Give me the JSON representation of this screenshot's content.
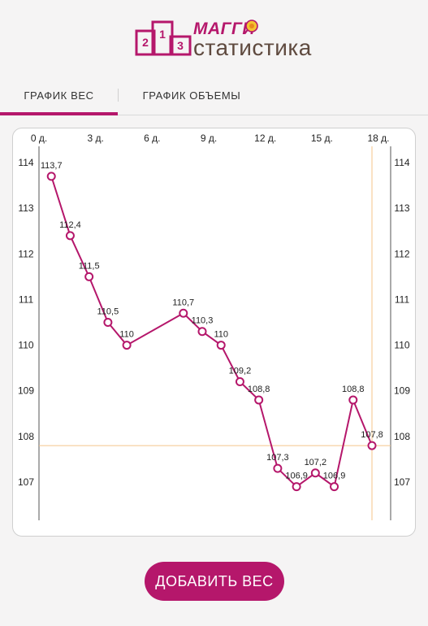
{
  "app": {
    "brand_top": "МАГГИ",
    "brand_bottom": "статистика"
  },
  "tabs": [
    {
      "label": "ГРАФИК ВЕС",
      "active": true
    },
    {
      "label": "ГРАФИК ОБЪЕМЫ",
      "active": false
    }
  ],
  "colors": {
    "accent": "#b5176b",
    "brown": "#5f4a3f",
    "highlight_line": "#f5c48a"
  },
  "chart_data": {
    "type": "line",
    "x_ticks": [
      "0 д.",
      "3 д.",
      "6 д.",
      "9 д.",
      "12 д.",
      "15 д.",
      "18 д."
    ],
    "x_tick_values": [
      0,
      3,
      6,
      9,
      12,
      15,
      18
    ],
    "y_ticks": [
      "114",
      "113",
      "112",
      "111",
      "110",
      "109",
      "108",
      "107"
    ],
    "y_tick_values": [
      114,
      113,
      112,
      111,
      110,
      109,
      108,
      107
    ],
    "xlim": [
      0,
      18
    ],
    "ylim": [
      106.2,
      114.2
    ],
    "series": [
      {
        "points": [
          {
            "x": 1,
            "y": 113.7,
            "label": "113,7"
          },
          {
            "x": 2,
            "y": 112.4,
            "label": "112,4"
          },
          {
            "x": 3,
            "y": 111.5,
            "label": "111,5"
          },
          {
            "x": 4,
            "y": 110.5,
            "label": "110,5"
          },
          {
            "x": 5,
            "y": 110.0,
            "label": "110"
          },
          {
            "x": 8,
            "y": 110.7,
            "label": "110,7"
          },
          {
            "x": 9,
            "y": 110.3,
            "label": "110,3"
          },
          {
            "x": 10,
            "y": 110.0,
            "label": "110"
          },
          {
            "x": 11,
            "y": 109.2,
            "label": "109,2"
          },
          {
            "x": 12,
            "y": 108.8,
            "label": "108,8"
          },
          {
            "x": 13,
            "y": 107.3,
            "label": "107,3"
          },
          {
            "x": 14,
            "y": 106.9,
            "label": "106,9"
          },
          {
            "x": 15,
            "y": 107.2,
            "label": "107,2"
          },
          {
            "x": 16,
            "y": 106.9,
            "label": "106,9"
          },
          {
            "x": 17,
            "y": 108.8,
            "label": "108,8"
          },
          {
            "x": 18,
            "y": 107.8,
            "label": "107,8"
          }
        ]
      }
    ],
    "highlight": {
      "x": 18,
      "y": 107.8
    },
    "grid": false
  },
  "actions": {
    "add_weight": "ДОБАВИТЬ ВЕС"
  }
}
